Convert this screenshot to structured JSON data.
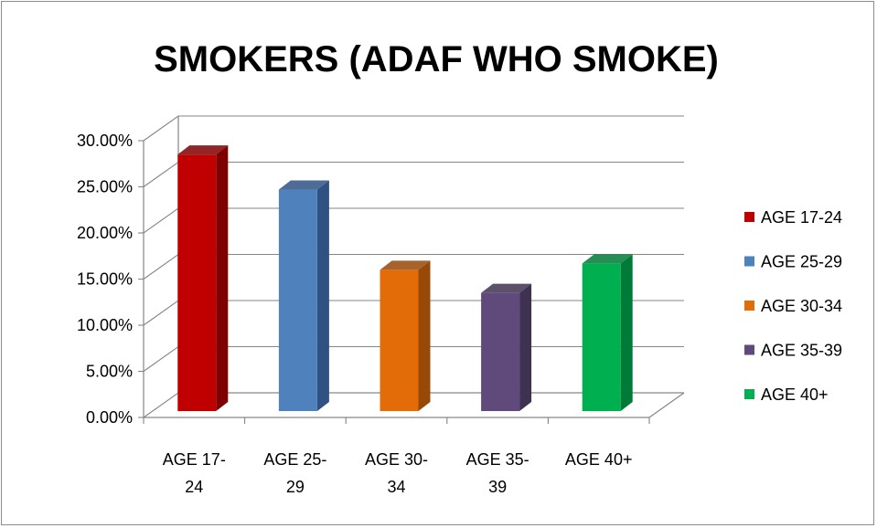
{
  "chart_data": {
    "type": "bar",
    "title": "SMOKERS (ADAF WHO SMOKE)",
    "categories": [
      [
        "AGE 17-",
        "24"
      ],
      [
        "AGE 25-",
        "29"
      ],
      [
        "AGE 30-",
        "34"
      ],
      [
        "AGE 35-",
        "39"
      ],
      [
        "AGE 40+"
      ]
    ],
    "series": [
      {
        "name": "AGE 17-24",
        "value": 0.285,
        "color": "#c00000",
        "dark": "#7f0000"
      },
      {
        "name": "AGE 25-29",
        "value": 0.247,
        "color": "#4f81bd",
        "dark": "#2f5282"
      },
      {
        "name": "AGE 30-34",
        "value": 0.16,
        "color": "#e36c09",
        "dark": "#984807"
      },
      {
        "name": "AGE 35-39",
        "value": 0.135,
        "color": "#604a7b",
        "dark": "#3f3151"
      },
      {
        "name": "AGE 40+",
        "value": 0.167,
        "color": "#00b050",
        "dark": "#007a37"
      }
    ],
    "yticks": [
      "0.00%",
      "5.00%",
      "10.00%",
      "15.00%",
      "20.00%",
      "25.00%",
      "30.00%"
    ],
    "ylim": [
      0,
      0.3
    ],
    "grid": true,
    "legend_position": "right",
    "style": "3d-column"
  }
}
